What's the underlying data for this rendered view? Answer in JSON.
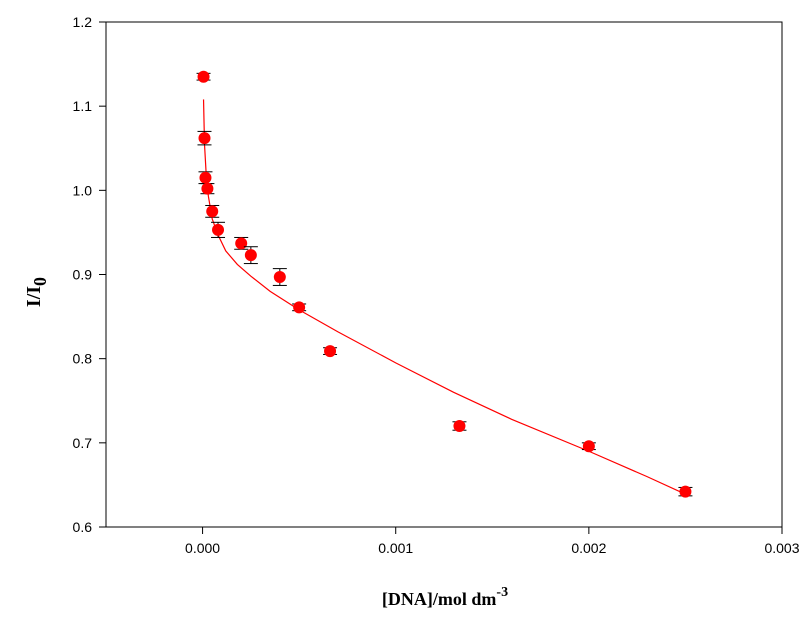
{
  "chart_data": {
    "type": "scatter",
    "title": "",
    "xlabel": {
      "main": "[DNA]/mol dm",
      "sup": "-3"
    },
    "ylabel": {
      "main": "I/I",
      "sub": "0"
    },
    "xlim": [
      -0.0005,
      0.003
    ],
    "ylim": [
      0.6,
      1.2
    ],
    "xticks": [
      0.0,
      0.001,
      0.002,
      0.003
    ],
    "xtick_labels": [
      "0.000",
      "0.001",
      "0.002",
      "0.003"
    ],
    "yticks": [
      0.6,
      0.7,
      0.8,
      0.9,
      1.0,
      1.1,
      1.2
    ],
    "ytick_labels": [
      "0.6",
      "0.7",
      "0.8",
      "0.9",
      "1.0",
      "1.1",
      "1.2"
    ],
    "grid": false,
    "legend": "none",
    "series": [
      {
        "kind": "points_with_error_bars",
        "color": "#ff0000",
        "points": [
          {
            "x": 5e-06,
            "y": 1.135,
            "err": 0.004
          },
          {
            "x": 1e-05,
            "y": 1.062,
            "err": 0.008
          },
          {
            "x": 1.5e-05,
            "y": 1.015,
            "err": 0.007
          },
          {
            "x": 2.5e-05,
            "y": 1.002,
            "err": 0.006
          },
          {
            "x": 5e-05,
            "y": 0.975,
            "err": 0.007
          },
          {
            "x": 8e-05,
            "y": 0.953,
            "err": 0.009
          },
          {
            "x": 0.0002,
            "y": 0.937,
            "err": 0.007
          },
          {
            "x": 0.00025,
            "y": 0.923,
            "err": 0.01
          },
          {
            "x": 0.0004,
            "y": 0.897,
            "err": 0.01
          },
          {
            "x": 0.0005,
            "y": 0.861,
            "err": 0.004
          },
          {
            "x": 0.00066,
            "y": 0.809,
            "err": 0.004
          },
          {
            "x": 0.00133,
            "y": 0.72,
            "err": 0.005
          },
          {
            "x": 0.002,
            "y": 0.696,
            "err": 0.004
          },
          {
            "x": 0.0025,
            "y": 0.642,
            "err": 0.005
          }
        ]
      },
      {
        "kind": "fit_line",
        "color": "#ff0000",
        "x": [
          5e-06,
          1e-05,
          2e-05,
          3e-05,
          5e-05,
          8e-05,
          0.00012,
          0.00018,
          0.00025,
          0.00035,
          0.0005,
          0.0007,
          0.001,
          0.0013,
          0.0016,
          0.002,
          0.0023,
          0.0025
        ],
        "y": [
          1.108,
          1.055,
          1.014,
          0.993,
          0.966,
          0.947,
          0.928,
          0.912,
          0.898,
          0.88,
          0.858,
          0.832,
          0.795,
          0.76,
          0.728,
          0.69,
          0.66,
          0.639
        ]
      }
    ]
  }
}
